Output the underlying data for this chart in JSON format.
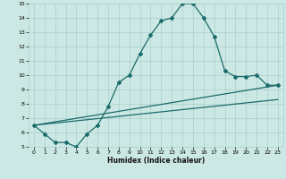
{
  "title": "",
  "xlabel": "Humidex (Indice chaleur)",
  "ylabel": "",
  "bg_color": "#cce8e4",
  "grid_color": "#aacfcb",
  "line_color": "#1a6b6b",
  "xlim": [
    -0.5,
    23.5
  ],
  "ylim": [
    5,
    15
  ],
  "xticks": [
    0,
    1,
    2,
    3,
    4,
    5,
    6,
    7,
    8,
    9,
    10,
    11,
    12,
    13,
    14,
    15,
    16,
    17,
    18,
    19,
    20,
    21,
    22,
    23
  ],
  "yticks": [
    5,
    6,
    7,
    8,
    9,
    10,
    11,
    12,
    13,
    14,
    15
  ],
  "series1_x": [
    0,
    1,
    2,
    3,
    4,
    5,
    6,
    7,
    8,
    9,
    10,
    11,
    12,
    13,
    14,
    15,
    16,
    17,
    18,
    19,
    20,
    21,
    22,
    23
  ],
  "series1_y": [
    6.5,
    5.9,
    5.3,
    5.3,
    5.0,
    5.9,
    6.5,
    7.8,
    9.5,
    10.0,
    11.5,
    12.8,
    13.8,
    14.0,
    15.0,
    15.0,
    14.0,
    12.7,
    10.3,
    9.9,
    9.9,
    10.0,
    9.3,
    9.3
  ],
  "series2_x": [
    0,
    23
  ],
  "series2_y": [
    6.5,
    8.3
  ],
  "series3_x": [
    0,
    23
  ],
  "series3_y": [
    6.5,
    9.3
  ],
  "marker": "D",
  "markersize": 2,
  "linewidth": 0.9,
  "tick_fontsize": 4.5,
  "xlabel_fontsize": 5.5
}
